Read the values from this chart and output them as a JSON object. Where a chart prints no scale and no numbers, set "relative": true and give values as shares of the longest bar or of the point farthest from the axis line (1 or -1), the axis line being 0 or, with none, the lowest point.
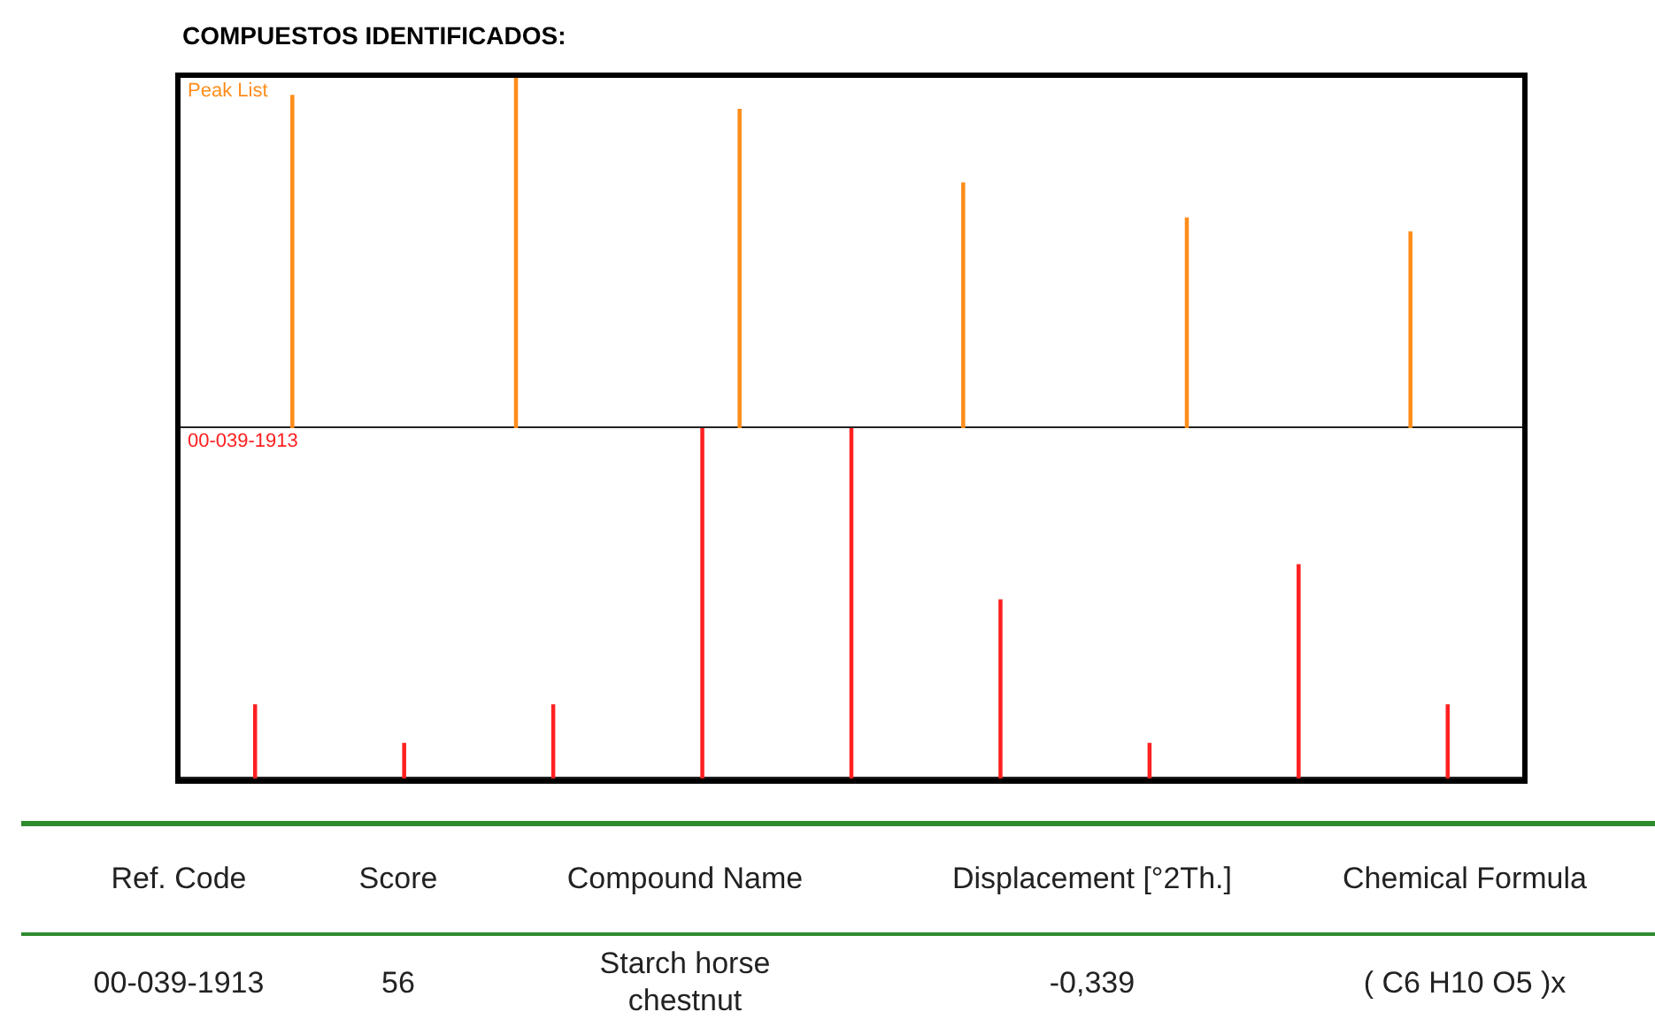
{
  "chart_data": [
    {
      "type": "bar",
      "title": "COMPUESTOS IDENTIFICADOS:",
      "relative": true,
      "categories": [
        null,
        null,
        null,
        null,
        null,
        null
      ],
      "series": [
        {
          "name": "Peak List",
          "color": "#ff8c1a",
          "values": [
            0.95,
            1.0,
            0.91,
            0.7,
            0.6,
            0.56
          ]
        }
      ]
    },
    {
      "type": "bar",
      "relative": true,
      "categories": [
        null,
        null,
        null,
        null,
        null,
        null,
        null,
        null,
        null
      ],
      "series": [
        {
          "name": "00-039-1913",
          "color": "#ff2020",
          "values": [
            0.21,
            0.1,
            0.21,
            1.0,
            1.0,
            0.51,
            0.1,
            0.61,
            0.21
          ]
        }
      ]
    },
    {
      "type": "other",
      "annotations": [
        "Ref. Code",
        "Score",
        "Compound Name",
        "Displacement [°2Th.]",
        "Chemical Formula",
        "00-039-1913",
        "56",
        "Starch horse chestnut",
        "-0,339",
        "( C6 H10 O5 )x"
      ]
    }
  ]
}
